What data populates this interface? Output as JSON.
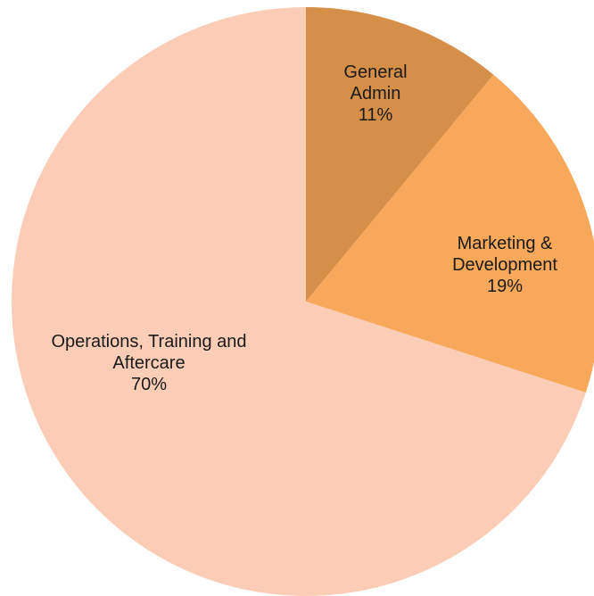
{
  "chart_data": {
    "type": "pie",
    "categories": [
      "General Admin",
      "Marketing & Development",
      "Operations, Training and Aftercare"
    ],
    "values": [
      11,
      19,
      70
    ],
    "value_labels": [
      "11%",
      "19%",
      "70%"
    ],
    "colors": [
      "#d68f48",
      "#f8a85a",
      "#fbcdb6"
    ]
  }
}
